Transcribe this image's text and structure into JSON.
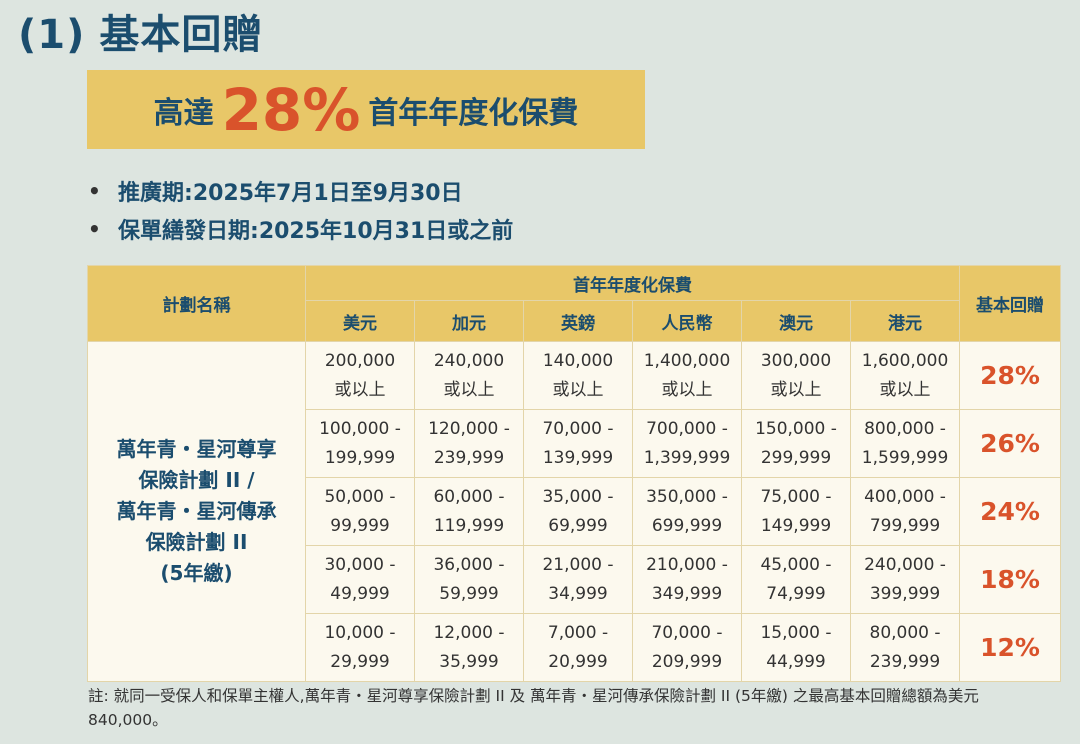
{
  "heading": {
    "number": "(1)",
    "title": "基本回贈"
  },
  "banner": {
    "prefix": "高達",
    "percent": "28%",
    "suffix": "首年年度化保費"
  },
  "bullets": [
    {
      "label": "推廣期: ",
      "value": "2025年7月1日至9月30日"
    },
    {
      "label": "保單繕發日期: ",
      "value": "2025年10月31日或之前"
    }
  ],
  "table": {
    "plan_header": "計劃名稱",
    "premium_header": "首年年度化保費",
    "rebate_header": "基本回贈",
    "currencies": [
      "美元",
      "加元",
      "英鎊",
      "人民幣",
      "澳元",
      "港元"
    ],
    "plan_name_lines": [
      "萬年青・星河尊享",
      "保險計劃 II /",
      "萬年青・星河傳承",
      "保險計劃 II",
      "(5年繳)"
    ],
    "rows": [
      {
        "cells": [
          [
            "200,000",
            "或以上"
          ],
          [
            "240,000",
            "或以上"
          ],
          [
            "140,000",
            "或以上"
          ],
          [
            "1,400,000",
            "或以上"
          ],
          [
            "300,000",
            "或以上"
          ],
          [
            "1,600,000",
            "或以上"
          ]
        ],
        "rebate": "28%"
      },
      {
        "cells": [
          [
            "100,000 -",
            "199,999"
          ],
          [
            "120,000 -",
            "239,999"
          ],
          [
            "70,000 -",
            "139,999"
          ],
          [
            "700,000 -",
            "1,399,999"
          ],
          [
            "150,000 -",
            "299,999"
          ],
          [
            "800,000 -",
            "1,599,999"
          ]
        ],
        "rebate": "26%"
      },
      {
        "cells": [
          [
            "50,000 -",
            "99,999"
          ],
          [
            "60,000 -",
            "119,999"
          ],
          [
            "35,000 -",
            "69,999"
          ],
          [
            "350,000 -",
            "699,999"
          ],
          [
            "75,000 -",
            "149,999"
          ],
          [
            "400,000 -",
            "799,999"
          ]
        ],
        "rebate": "24%"
      },
      {
        "cells": [
          [
            "30,000 -",
            "49,999"
          ],
          [
            "36,000 -",
            "59,999"
          ],
          [
            "21,000 -",
            "34,999"
          ],
          [
            "210,000 -",
            "349,999"
          ],
          [
            "45,000 -",
            "74,999"
          ],
          [
            "240,000 -",
            "399,999"
          ]
        ],
        "rebate": "18%"
      },
      {
        "cells": [
          [
            "10,000 -",
            "29,999"
          ],
          [
            "12,000 -",
            "35,999"
          ],
          [
            "7,000 -",
            "20,999"
          ],
          [
            "70,000 -",
            "209,999"
          ],
          [
            "15,000 -",
            "44,999"
          ],
          [
            "80,000 -",
            "239,999"
          ]
        ],
        "rebate": "12%"
      }
    ]
  },
  "note": "註: 就同一受保人和保單主權人,萬年青・星河尊享保險計劃 II 及 萬年青・星河傳承保險計劃 II (5年繳) 之最高基本回贈總額為美元840,000。"
}
